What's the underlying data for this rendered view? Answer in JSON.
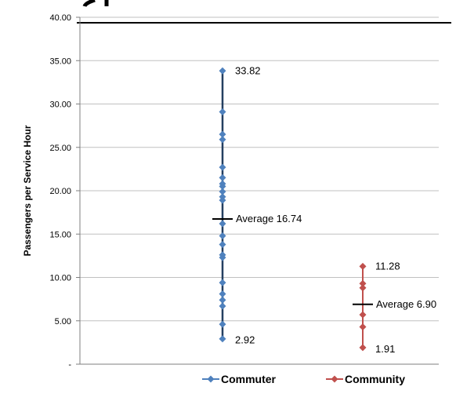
{
  "colors": {
    "commuter": "#4f81bd",
    "commuter_line": "#243f60",
    "community": "#c0504d",
    "average_marker": "#000000",
    "gridline": "#c0c0c0",
    "axis": "#7f7f7f"
  },
  "chart_data": {
    "type": "scatter",
    "title": "",
    "xlabel": "",
    "ylabel": "Passengers per Service Hour",
    "ylim": [
      0,
      40
    ],
    "y_ticks": [
      {
        "value": 0,
        "label": "-"
      },
      {
        "value": 5,
        "label": "5.00"
      },
      {
        "value": 10,
        "label": "10.00"
      },
      {
        "value": 15,
        "label": "15.00"
      },
      {
        "value": 20,
        "label": "20.00"
      },
      {
        "value": 25,
        "label": "25.00"
      },
      {
        "value": 30,
        "label": "30.00"
      },
      {
        "value": 35,
        "label": "35.00"
      },
      {
        "value": 40,
        "label": "40.00"
      }
    ],
    "grid": true,
    "legend_position": "bottom",
    "marker": "diamond",
    "series": [
      {
        "name": "Commuter",
        "color": "#4f81bd",
        "x": 1,
        "values": [
          33.82,
          29.1,
          26.5,
          25.9,
          22.7,
          21.5,
          20.8,
          20.5,
          19.9,
          19.3,
          18.9,
          16.2,
          14.8,
          13.8,
          12.6,
          12.3,
          9.4,
          8.1,
          7.4,
          6.7,
          4.6,
          2.92
        ],
        "max_label": "33.82",
        "min_label": "2.92",
        "average": 16.74,
        "average_label": "Average 16.74"
      },
      {
        "name": "Community",
        "color": "#c0504d",
        "x": 2,
        "values": [
          11.28,
          9.3,
          8.8,
          5.7,
          4.3,
          1.91
        ],
        "max_label": "11.28",
        "min_label": "1.91",
        "average": 6.9,
        "average_label": "Average 6.90"
      }
    ]
  }
}
